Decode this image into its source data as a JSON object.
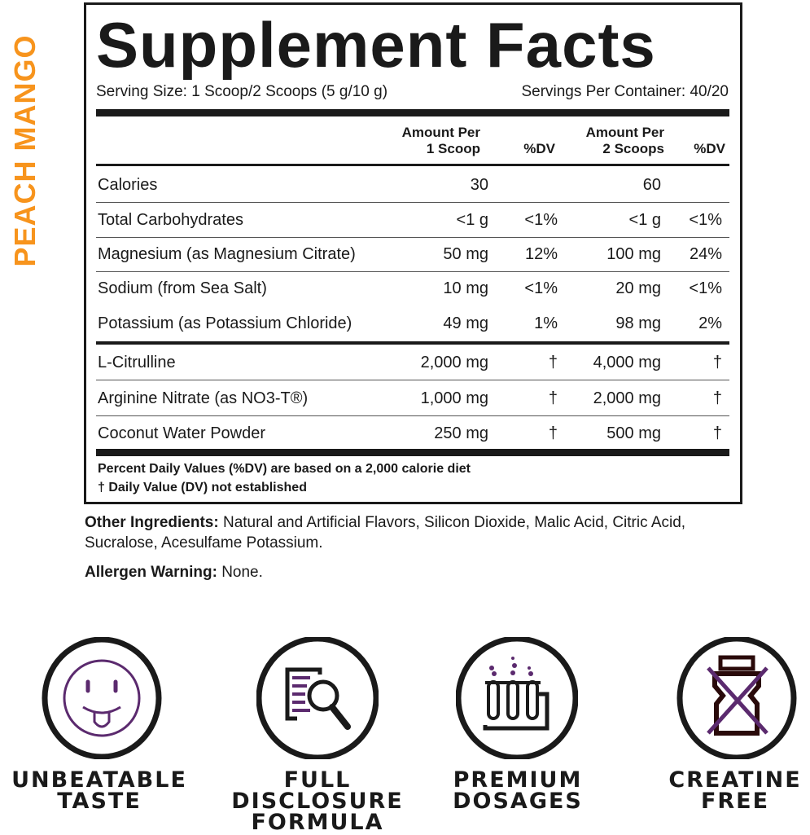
{
  "flavor": "PEACH MANGO",
  "title": "Supplement Facts",
  "serving_size": "Serving Size: 1 Scoop/2 Scoops (5 g/10 g)",
  "servings_per_container": "Servings Per Container: 40/20",
  "columns": {
    "amount1": [
      "Amount Per",
      "1 Scoop"
    ],
    "dv1": "%DV",
    "amount2": [
      "Amount Per",
      "2 Scoops"
    ],
    "dv2": "%DV"
  },
  "rows": [
    {
      "name": "Calories",
      "a1": "30",
      "d1": "",
      "a2": "60",
      "d2": ""
    },
    {
      "name": "Total Carbohydrates",
      "a1": "<1 g",
      "d1": "<1%",
      "a2": "<1 g",
      "d2": "<1%"
    },
    {
      "name": "Magnesium (as Magnesium Citrate)",
      "a1": "50 mg",
      "d1": "12%",
      "a2": "100 mg",
      "d2": "24%"
    },
    {
      "name": "Sodium (from Sea Salt)",
      "a1": "10 mg",
      "d1": "<1%",
      "a2": "20 mg",
      "d2": "<1%"
    },
    {
      "name": "Potassium (as Potassium Chloride)",
      "a1": "49 mg",
      "d1": "1%",
      "a2": "98 mg",
      "d2": "2%"
    },
    {
      "name": "L-Citrulline",
      "a1": "2,000 mg",
      "d1": "†",
      "a2": "4,000 mg",
      "d2": "†"
    },
    {
      "name": "Arginine Nitrate (as NO3-T®)",
      "a1": "1,000 mg",
      "d1": "†",
      "a2": "2,000 mg",
      "d2": "†"
    },
    {
      "name": "Coconut Water Powder",
      "a1": "250 mg",
      "d1": "†",
      "a2": "500 mg",
      "d2": "†"
    }
  ],
  "footnotes": [
    "Percent Daily Values (%DV) are based on a 2,000 calorie diet",
    "† Daily Value (DV) not established"
  ],
  "other_ingredients": {
    "label": "Other Ingredients:",
    "text": " Natural and Artificial Flavors, Silicon Dioxide, Malic Acid, Citric Acid, Sucralose, Acesulfame Potassium."
  },
  "allergen": {
    "label": "Allergen Warning:",
    "text": " None."
  },
  "badges": [
    {
      "icon": "tongue-smiley-icon",
      "lines": [
        "UNBEATABLE",
        "TASTE"
      ]
    },
    {
      "icon": "document-magnifier-icon",
      "lines": [
        "FULL",
        "DISCLOSURE",
        "FORMULA"
      ]
    },
    {
      "icon": "test-tubes-icon",
      "lines": [
        "PREMIUM",
        "DOSAGES"
      ]
    },
    {
      "icon": "crossed-out-jar-icon",
      "lines": [
        "CREATINE",
        "FREE"
      ]
    }
  ],
  "colors": {
    "flavor": "#f7941d",
    "accent": "#5b2a6e",
    "ink": "#1a1a1a"
  }
}
